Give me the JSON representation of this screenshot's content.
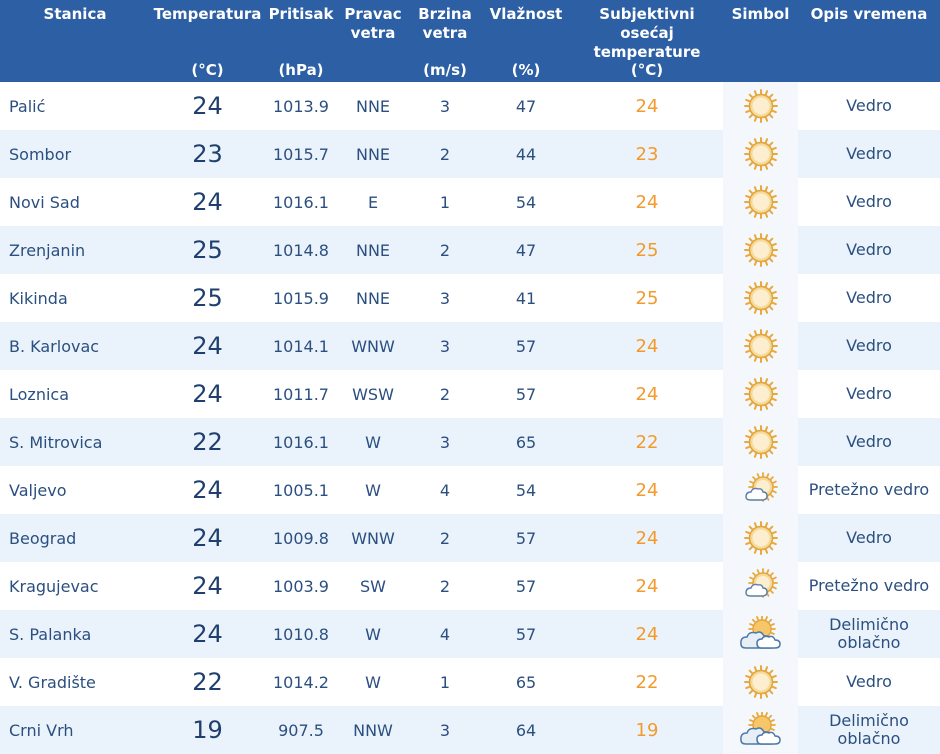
{
  "headers": {
    "station": {
      "title": "Stanica",
      "unit": ""
    },
    "temperature": {
      "title": "Temperatura",
      "unit": "(°C)"
    },
    "pressure": {
      "title": "Pritisak",
      "unit": "(hPa)"
    },
    "wind_direction": {
      "title": "Pravac vetra",
      "unit": ""
    },
    "wind_speed": {
      "title": "Brzina vetra",
      "unit": "(m/s)"
    },
    "humidity": {
      "title": "Vlažnost",
      "unit": "(%)"
    },
    "feels_like": {
      "title": "Subjektivni osećaj temperature",
      "unit": "(°C)"
    },
    "symbol": {
      "title": "Simbol",
      "unit": ""
    },
    "description": {
      "title": "Opis vremena",
      "unit": ""
    }
  },
  "rows": [
    {
      "station": "Palić",
      "temperature": "24",
      "pressure": "1013.9",
      "wind_direction": "NNE",
      "wind_speed": "3",
      "humidity": "47",
      "feels_like": "24",
      "symbol": "sun-icon",
      "description": "Vedro"
    },
    {
      "station": "Sombor",
      "temperature": "23",
      "pressure": "1015.7",
      "wind_direction": "NNE",
      "wind_speed": "2",
      "humidity": "44",
      "feels_like": "23",
      "symbol": "sun-icon",
      "description": "Vedro"
    },
    {
      "station": "Novi Sad",
      "temperature": "24",
      "pressure": "1016.1",
      "wind_direction": "E",
      "wind_speed": "1",
      "humidity": "54",
      "feels_like": "24",
      "symbol": "sun-icon",
      "description": "Vedro"
    },
    {
      "station": "Zrenjanin",
      "temperature": "25",
      "pressure": "1014.8",
      "wind_direction": "NNE",
      "wind_speed": "2",
      "humidity": "47",
      "feels_like": "25",
      "symbol": "sun-icon",
      "description": "Vedro"
    },
    {
      "station": "Kikinda",
      "temperature": "25",
      "pressure": "1015.9",
      "wind_direction": "NNE",
      "wind_speed": "3",
      "humidity": "41",
      "feels_like": "25",
      "symbol": "sun-icon",
      "description": "Vedro"
    },
    {
      "station": "B. Karlovac",
      "temperature": "24",
      "pressure": "1014.1",
      "wind_direction": "WNW",
      "wind_speed": "3",
      "humidity": "57",
      "feels_like": "24",
      "symbol": "sun-icon",
      "description": "Vedro"
    },
    {
      "station": "Loznica",
      "temperature": "24",
      "pressure": "1011.7",
      "wind_direction": "WSW",
      "wind_speed": "2",
      "humidity": "57",
      "feels_like": "24",
      "symbol": "sun-icon",
      "description": "Vedro"
    },
    {
      "station": "S. Mitrovica",
      "temperature": "22",
      "pressure": "1016.1",
      "wind_direction": "W",
      "wind_speed": "3",
      "humidity": "65",
      "feels_like": "22",
      "symbol": "sun-icon",
      "description": "Vedro"
    },
    {
      "station": "Valjevo",
      "temperature": "24",
      "pressure": "1005.1",
      "wind_direction": "W",
      "wind_speed": "4",
      "humidity": "54",
      "feels_like": "24",
      "symbol": "sun-small-cloud-icon",
      "description": "Pretežno vedro"
    },
    {
      "station": "Beograd",
      "temperature": "24",
      "pressure": "1009.8",
      "wind_direction": "WNW",
      "wind_speed": "2",
      "humidity": "57",
      "feels_like": "24",
      "symbol": "sun-icon",
      "description": "Vedro"
    },
    {
      "station": "Kragujevac",
      "temperature": "24",
      "pressure": "1003.9",
      "wind_direction": "SW",
      "wind_speed": "2",
      "humidity": "57",
      "feels_like": "24",
      "symbol": "sun-small-cloud-icon",
      "description": "Pretežno vedro"
    },
    {
      "station": "S. Palanka",
      "temperature": "24",
      "pressure": "1010.8",
      "wind_direction": "W",
      "wind_speed": "4",
      "humidity": "57",
      "feels_like": "24",
      "symbol": "partly-cloudy-icon",
      "description": "Delimično oblačno"
    },
    {
      "station": "V. Gradište",
      "temperature": "22",
      "pressure": "1014.2",
      "wind_direction": "W",
      "wind_speed": "1",
      "humidity": "65",
      "feels_like": "22",
      "symbol": "sun-icon",
      "description": "Vedro"
    },
    {
      "station": "Crni Vrh",
      "temperature": "19",
      "pressure": "907.5",
      "wind_direction": "NNW",
      "wind_speed": "3",
      "humidity": "64",
      "feels_like": "19",
      "symbol": "partly-cloudy-icon",
      "description": "Delimično oblačno"
    }
  ],
  "colors": {
    "header_bg": "#2d5fa4",
    "header_text": "#ffffff",
    "row_alt_bg": "#eaf3fb",
    "text": "#2b4f80",
    "feels_like_text": "#f39a2b"
  }
}
